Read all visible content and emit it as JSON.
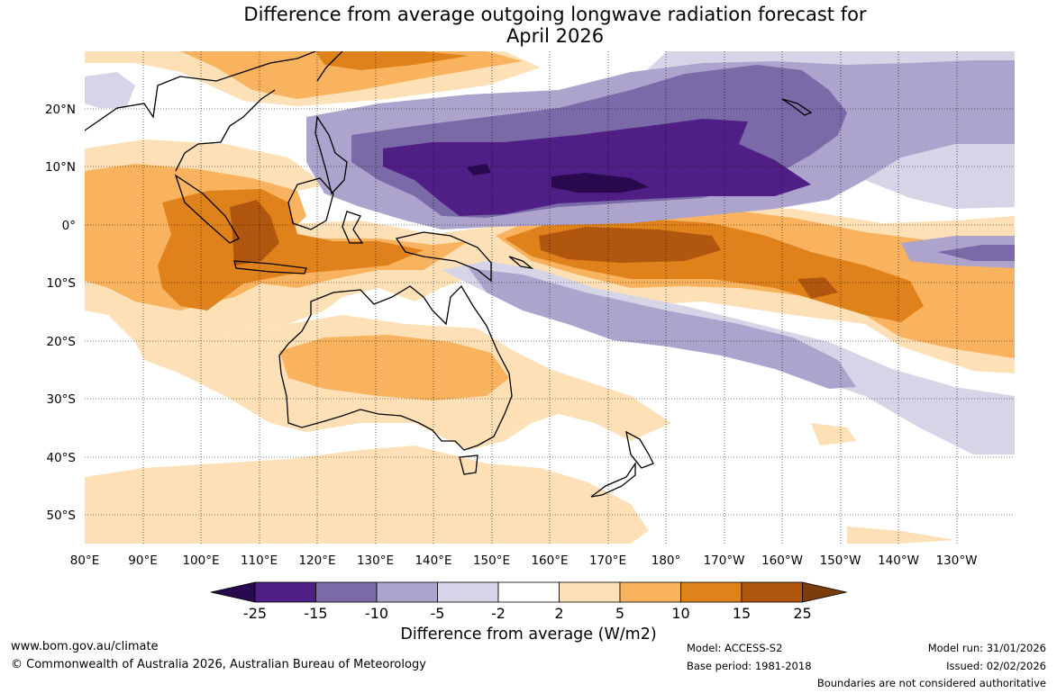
{
  "title_line1": "Difference from average outgoing longwave radiation forecast for",
  "title_line2": "April 2026",
  "latitude_labels": [
    "20°N",
    "10°N",
    "0°",
    "10°S",
    "20°S",
    "30°S",
    "40°S",
    "50°S"
  ],
  "longitude_labels": [
    "80°E",
    "90°E",
    "100°E",
    "110°E",
    "120°E",
    "130°E",
    "140°E",
    "150°E",
    "160°E",
    "170°E",
    "180°",
    "170°W",
    "160°W",
    "150°W",
    "140°W",
    "130°W"
  ],
  "colorbar": {
    "labels": [
      "-25",
      "-15",
      "-10",
      "-5",
      "-2",
      "2",
      "5",
      "10",
      "15",
      "25"
    ],
    "colors": [
      "#2a0a4e",
      "#4f1f86",
      "#7a6aa8",
      "#aca4cc",
      "#d6d5e8",
      "#ffffff",
      "#fde0b6",
      "#f9b35e",
      "#e0821c",
      "#b0560e",
      "#7c3c0a"
    ],
    "title": "Difference from average (W/m2)"
  },
  "footer": {
    "url": "www.bom.gov.au/climate",
    "copyright": "© Commonwealth of Australia 2026, Australian Bureau of Meteorology",
    "model": "Model: ACCESS-S2",
    "base_period": "Base period: 1981-2018",
    "model_run": "Model run: 31/01/2026",
    "issued": "Issued: 02/02/2026",
    "boundaries_note": "Boundaries are not considered authoritative"
  },
  "map_data": {
    "region": "80°E to 125°W, 55°S to 30°N",
    "units": "W/m2",
    "features": [
      {
        "name": "negative anomaly band",
        "level": "-15",
        "area": "western Pacific north of equator"
      },
      {
        "name": "positive anomaly band",
        "level": "15",
        "area": "central Pacific south of equator"
      },
      {
        "name": "positive anomaly",
        "level": "15",
        "area": "Indonesia / Java Sea"
      }
    ]
  }
}
